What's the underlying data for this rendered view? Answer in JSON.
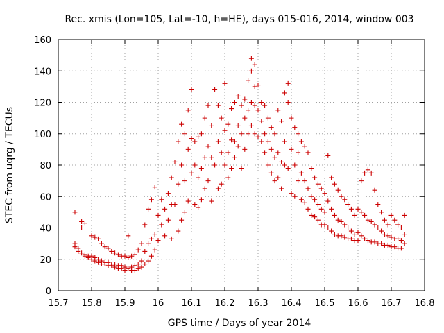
{
  "chart_data": {
    "type": "scatter",
    "title": "Rec. xmis (Lon=105, Lat=-10, h=HE), days 015-016, 2014, window 003",
    "xlabel": "GPS time / Days of year 2014",
    "ylabel": "STEC from uqrg / TECUs",
    "xlim": [
      15.7,
      16.8
    ],
    "ylim": [
      0,
      160
    ],
    "xticks": [
      "15.7",
      "15.8",
      "15.9",
      "16",
      "16.1",
      "16.2",
      "16.3",
      "16.4",
      "16.5",
      "16.6",
      "16.7",
      "16.8"
    ],
    "yticks": [
      "0",
      "20",
      "40",
      "60",
      "80",
      "100",
      "120",
      "140",
      "160"
    ],
    "grid": true,
    "marker": "+",
    "color": "#cc0000",
    "series": [
      {
        "points": [
          [
            15.75,
            50
          ],
          [
            15.75,
            30
          ],
          [
            15.75,
            28
          ],
          [
            15.76,
            27
          ],
          [
            15.76,
            25
          ],
          [
            15.77,
            44
          ],
          [
            15.77,
            40
          ],
          [
            15.77,
            24
          ],
          [
            15.78,
            43
          ],
          [
            15.78,
            23
          ],
          [
            15.78,
            22
          ],
          [
            15.79,
            22
          ],
          [
            15.79,
            21
          ],
          [
            15.8,
            35
          ],
          [
            15.8,
            22
          ],
          [
            15.8,
            20
          ],
          [
            15.81,
            34
          ],
          [
            15.81,
            21
          ],
          [
            15.81,
            19
          ],
          [
            15.82,
            33
          ],
          [
            15.82,
            20
          ],
          [
            15.82,
            18
          ],
          [
            15.83,
            30
          ],
          [
            15.83,
            19
          ],
          [
            15.83,
            17
          ],
          [
            15.84,
            28
          ],
          [
            15.84,
            18
          ],
          [
            15.84,
            17
          ],
          [
            15.85,
            27
          ],
          [
            15.85,
            18
          ],
          [
            15.85,
            16
          ],
          [
            15.86,
            25
          ],
          [
            15.86,
            17
          ],
          [
            15.86,
            16
          ],
          [
            15.87,
            24
          ],
          [
            15.87,
            17
          ],
          [
            15.87,
            15
          ],
          [
            15.88,
            23
          ],
          [
            15.88,
            16
          ],
          [
            15.88,
            14
          ],
          [
            15.89,
            22
          ],
          [
            15.89,
            16
          ],
          [
            15.89,
            14
          ],
          [
            15.9,
            22
          ],
          [
            15.9,
            15
          ],
          [
            15.9,
            13
          ],
          [
            15.91,
            35
          ],
          [
            15.91,
            21
          ],
          [
            15.91,
            14
          ],
          [
            15.92,
            22
          ],
          [
            15.92,
            15
          ],
          [
            15.92,
            13
          ],
          [
            15.93,
            23
          ],
          [
            15.93,
            16
          ],
          [
            15.93,
            13
          ],
          [
            15.94,
            26
          ],
          [
            15.94,
            17
          ],
          [
            15.94,
            14
          ],
          [
            15.95,
            30
          ],
          [
            15.95,
            19
          ],
          [
            15.95,
            15
          ],
          [
            15.96,
            42
          ],
          [
            15.96,
            25
          ],
          [
            15.96,
            17
          ],
          [
            15.97,
            52
          ],
          [
            15.97,
            30
          ],
          [
            15.97,
            19
          ],
          [
            15.98,
            58
          ],
          [
            15.98,
            33
          ],
          [
            15.98,
            22
          ],
          [
            15.99,
            66
          ],
          [
            15.99,
            36
          ],
          [
            15.99,
            26
          ],
          [
            16.0,
            48
          ],
          [
            16.0,
            32
          ],
          [
            16.01,
            58
          ],
          [
            16.01,
            42
          ],
          [
            16.02,
            52
          ],
          [
            16.02,
            35
          ],
          [
            16.03,
            62
          ],
          [
            16.03,
            45
          ],
          [
            16.04,
            72
          ],
          [
            16.04,
            55
          ],
          [
            16.04,
            33
          ],
          [
            16.05,
            82
          ],
          [
            16.05,
            55
          ],
          [
            16.06,
            95
          ],
          [
            16.06,
            68
          ],
          [
            16.06,
            38
          ],
          [
            16.07,
            106
          ],
          [
            16.07,
            80
          ],
          [
            16.07,
            45
          ],
          [
            16.08,
            100
          ],
          [
            16.08,
            70
          ],
          [
            16.08,
            50
          ],
          [
            16.09,
            115
          ],
          [
            16.09,
            90
          ],
          [
            16.09,
            57
          ],
          [
            16.1,
            128
          ],
          [
            16.1,
            97
          ],
          [
            16.1,
            75
          ],
          [
            16.11,
            95
          ],
          [
            16.11,
            80
          ],
          [
            16.11,
            55
          ],
          [
            16.12,
            98
          ],
          [
            16.12,
            72
          ],
          [
            16.12,
            53
          ],
          [
            16.13,
            100
          ],
          [
            16.13,
            78
          ],
          [
            16.13,
            58
          ],
          [
            16.14,
            110
          ],
          [
            16.14,
            85
          ],
          [
            16.14,
            65
          ],
          [
            16.15,
            118
          ],
          [
            16.15,
            92
          ],
          [
            16.15,
            70
          ],
          [
            16.16,
            105
          ],
          [
            16.16,
            85
          ],
          [
            16.16,
            57
          ],
          [
            16.17,
            128
          ],
          [
            16.17,
            80
          ],
          [
            16.18,
            118
          ],
          [
            16.18,
            95
          ],
          [
            16.18,
            65
          ],
          [
            16.19,
            110
          ],
          [
            16.19,
            88
          ],
          [
            16.19,
            68
          ],
          [
            16.2,
            132
          ],
          [
            16.2,
            102
          ],
          [
            16.2,
            80
          ],
          [
            16.21,
            106
          ],
          [
            16.21,
            88
          ],
          [
            16.21,
            72
          ],
          [
            16.22,
            116
          ],
          [
            16.22,
            96
          ],
          [
            16.22,
            78
          ],
          [
            16.23,
            120
          ],
          [
            16.23,
            95
          ],
          [
            16.23,
            85
          ],
          [
            16.24,
            124
          ],
          [
            16.24,
            105
          ],
          [
            16.24,
            92
          ],
          [
            16.25,
            118
          ],
          [
            16.25,
            100
          ],
          [
            16.25,
            78
          ],
          [
            16.26,
            122
          ],
          [
            16.26,
            110
          ],
          [
            16.26,
            90
          ],
          [
            16.27,
            134
          ],
          [
            16.27,
            115
          ],
          [
            16.27,
            100
          ],
          [
            16.28,
            148
          ],
          [
            16.28,
            140
          ],
          [
            16.28,
            120
          ],
          [
            16.28,
            105
          ],
          [
            16.29,
            144
          ],
          [
            16.29,
            130
          ],
          [
            16.29,
            118
          ],
          [
            16.29,
            100
          ],
          [
            16.3,
            131
          ],
          [
            16.3,
            115
          ],
          [
            16.3,
            98
          ],
          [
            16.31,
            120
          ],
          [
            16.31,
            108
          ],
          [
            16.31,
            95
          ],
          [
            16.32,
            118
          ],
          [
            16.32,
            100
          ],
          [
            16.32,
            88
          ],
          [
            16.33,
            110
          ],
          [
            16.33,
            95
          ],
          [
            16.33,
            80
          ],
          [
            16.34,
            104
          ],
          [
            16.34,
            90
          ],
          [
            16.34,
            75
          ],
          [
            16.35,
            100
          ],
          [
            16.35,
            85
          ],
          [
            16.35,
            70
          ],
          [
            16.36,
            115
          ],
          [
            16.36,
            88
          ],
          [
            16.36,
            72
          ],
          [
            16.37,
            108
          ],
          [
            16.37,
            82
          ],
          [
            16.37,
            65
          ],
          [
            16.38,
            126
          ],
          [
            16.38,
            95
          ],
          [
            16.38,
            80
          ],
          [
            16.39,
            132
          ],
          [
            16.39,
            120
          ],
          [
            16.39,
            78
          ],
          [
            16.4,
            110
          ],
          [
            16.4,
            90
          ],
          [
            16.4,
            62
          ],
          [
            16.41,
            104
          ],
          [
            16.41,
            80
          ],
          [
            16.41,
            60
          ],
          [
            16.42,
            100
          ],
          [
            16.42,
            88
          ],
          [
            16.42,
            70
          ],
          [
            16.43,
            95
          ],
          [
            16.43,
            75
          ],
          [
            16.43,
            58
          ],
          [
            16.44,
            92
          ],
          [
            16.44,
            70
          ],
          [
            16.44,
            56
          ],
          [
            16.45,
            88
          ],
          [
            16.45,
            65
          ],
          [
            16.45,
            52
          ],
          [
            16.46,
            78
          ],
          [
            16.46,
            60
          ],
          [
            16.46,
            48
          ],
          [
            16.47,
            72
          ],
          [
            16.47,
            58
          ],
          [
            16.47,
            47
          ],
          [
            16.48,
            68
          ],
          [
            16.48,
            55
          ],
          [
            16.48,
            45
          ],
          [
            16.49,
            65
          ],
          [
            16.49,
            52
          ],
          [
            16.49,
            42
          ],
          [
            16.5,
            62
          ],
          [
            16.5,
            50
          ],
          [
            16.5,
            42
          ],
          [
            16.51,
            86
          ],
          [
            16.51,
            57
          ],
          [
            16.51,
            40
          ],
          [
            16.52,
            72
          ],
          [
            16.52,
            52
          ],
          [
            16.52,
            38
          ],
          [
            16.53,
            68
          ],
          [
            16.53,
            48
          ],
          [
            16.53,
            36
          ],
          [
            16.54,
            64
          ],
          [
            16.54,
            45
          ],
          [
            16.54,
            35
          ],
          [
            16.55,
            60
          ],
          [
            16.55,
            44
          ],
          [
            16.55,
            35
          ],
          [
            16.56,
            58
          ],
          [
            16.56,
            42
          ],
          [
            16.56,
            34
          ],
          [
            16.57,
            55
          ],
          [
            16.57,
            40
          ],
          [
            16.57,
            33
          ],
          [
            16.58,
            52
          ],
          [
            16.58,
            38
          ],
          [
            16.58,
            33
          ],
          [
            16.59,
            48
          ],
          [
            16.59,
            36
          ],
          [
            16.59,
            32
          ],
          [
            16.6,
            52
          ],
          [
            16.6,
            37
          ],
          [
            16.6,
            32
          ],
          [
            16.61,
            70
          ],
          [
            16.61,
            50
          ],
          [
            16.61,
            35
          ],
          [
            16.62,
            75
          ],
          [
            16.62,
            48
          ],
          [
            16.62,
            33
          ],
          [
            16.63,
            77
          ],
          [
            16.63,
            45
          ],
          [
            16.63,
            32
          ],
          [
            16.64,
            75
          ],
          [
            16.64,
            44
          ],
          [
            16.64,
            31
          ],
          [
            16.65,
            64
          ],
          [
            16.65,
            42
          ],
          [
            16.65,
            31
          ],
          [
            16.66,
            55
          ],
          [
            16.66,
            40
          ],
          [
            16.66,
            30
          ],
          [
            16.67,
            50
          ],
          [
            16.67,
            38
          ],
          [
            16.67,
            30
          ],
          [
            16.68,
            45
          ],
          [
            16.68,
            36
          ],
          [
            16.68,
            29
          ],
          [
            16.69,
            42
          ],
          [
            16.69,
            35
          ],
          [
            16.69,
            29
          ],
          [
            16.7,
            48
          ],
          [
            16.7,
            34
          ],
          [
            16.7,
            28
          ],
          [
            16.71,
            45
          ],
          [
            16.71,
            33
          ],
          [
            16.71,
            28
          ],
          [
            16.72,
            42
          ],
          [
            16.72,
            33
          ],
          [
            16.72,
            27
          ],
          [
            16.73,
            40
          ],
          [
            16.73,
            32
          ],
          [
            16.73,
            27
          ],
          [
            16.74,
            48
          ],
          [
            16.74,
            36
          ],
          [
            16.74,
            30
          ]
        ]
      }
    ]
  }
}
